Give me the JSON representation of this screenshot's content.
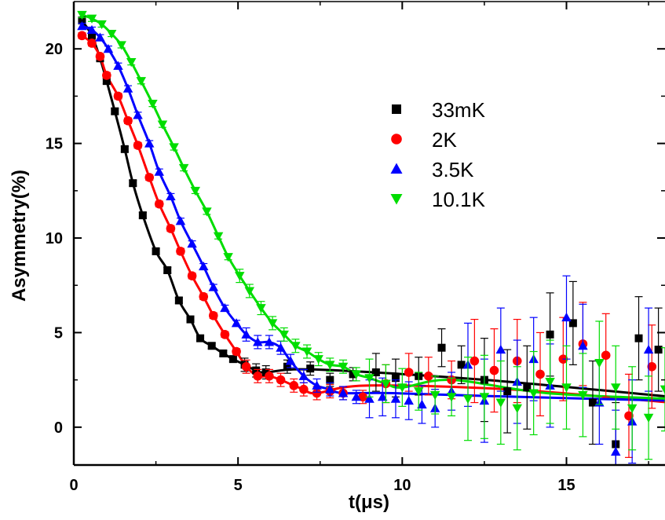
{
  "chart_data": {
    "type": "scatter",
    "xlabel": "t(μs)",
    "ylabel": "Asymmetry(%)",
    "xlim": [
      0,
      18
    ],
    "ylim": [
      -2,
      22.5
    ],
    "xticks": [
      0,
      5,
      10,
      15
    ],
    "yticks": [
      0,
      5,
      10,
      15,
      20
    ],
    "grid": false,
    "legend_position": "center-right",
    "series": [
      {
        "name": "33mK",
        "color": "#000000",
        "marker": "square",
        "x": [
          0.25,
          0.55,
          0.8,
          1.0,
          1.25,
          1.55,
          1.8,
          2.1,
          2.5,
          2.85,
          3.2,
          3.55,
          3.85,
          4.2,
          4.55,
          4.85,
          5.2,
          5.55,
          5.85,
          6.5,
          7.2,
          7.8,
          8.5,
          9.2,
          9.8,
          10.5,
          11.2,
          11.8,
          12.5,
          13.2,
          13.8,
          14.5,
          15.2,
          15.8,
          16.5,
          17.2,
          17.8
        ],
        "y": [
          21.5,
          20.7,
          19.5,
          18.3,
          16.7,
          14.7,
          12.9,
          11.2,
          9.3,
          8.3,
          6.7,
          5.7,
          4.7,
          4.3,
          3.9,
          3.6,
          3.3,
          3.0,
          2.9,
          3.2,
          3.1,
          2.5,
          2.8,
          2.9,
          2.6,
          2.7,
          4.2,
          3.3,
          2.5,
          1.9,
          2.1,
          4.9,
          5.5,
          1.3,
          -0.9,
          4.7,
          4.1
        ]
      },
      {
        "name": "2K",
        "color": "#ff0000",
        "marker": "circle",
        "x": [
          0.25,
          0.55,
          0.8,
          1.0,
          1.35,
          1.65,
          1.95,
          2.3,
          2.6,
          2.95,
          3.25,
          3.6,
          3.95,
          4.25,
          4.6,
          4.95,
          5.25,
          5.6,
          5.95,
          6.3,
          6.7,
          7.0,
          7.4,
          7.8,
          8.2,
          8.8,
          9.5,
          10.2,
          10.8,
          11.5,
          12.2,
          12.8,
          13.5,
          14.2,
          14.9,
          15.5,
          16.2,
          16.9,
          17.6
        ],
        "y": [
          20.7,
          20.3,
          19.6,
          18.6,
          17.5,
          16.2,
          14.9,
          13.2,
          11.8,
          10.5,
          9.3,
          8.0,
          6.9,
          5.9,
          4.9,
          4.0,
          3.2,
          2.7,
          2.7,
          2.5,
          2.2,
          2.0,
          1.8,
          1.9,
          1.8,
          1.6,
          2.3,
          2.9,
          2.7,
          2.5,
          3.5,
          3.0,
          3.5,
          2.8,
          3.6,
          4.4,
          3.8,
          0.6,
          3.2
        ]
      },
      {
        "name": "3.5K",
        "color": "#0000ff",
        "marker": "triangle-up",
        "x": [
          0.25,
          0.55,
          0.8,
          1.05,
          1.35,
          1.65,
          1.95,
          2.3,
          2.6,
          2.95,
          3.25,
          3.6,
          3.95,
          4.25,
          4.6,
          4.95,
          5.25,
          5.6,
          5.95,
          6.3,
          6.6,
          7.0,
          7.4,
          7.8,
          8.2,
          8.6,
          9.0,
          9.4,
          9.8,
          10.2,
          10.6,
          11.0,
          11.5,
          12.0,
          12.5,
          13.0,
          13.5,
          14.0,
          14.5,
          15.0,
          15.5,
          16.0,
          16.5,
          17.0,
          17.5
        ],
        "y": [
          21.2,
          21.0,
          20.6,
          20.0,
          19.1,
          17.9,
          16.5,
          15.0,
          13.5,
          12.2,
          10.9,
          9.7,
          8.5,
          7.4,
          6.3,
          5.5,
          4.9,
          4.5,
          4.5,
          4.2,
          3.5,
          2.7,
          2.2,
          2.0,
          1.8,
          1.6,
          1.5,
          1.6,
          1.5,
          1.4,
          1.2,
          1.0,
          1.9,
          3.3,
          1.4,
          4.1,
          2.4,
          3.6,
          2.2,
          5.8,
          4.3,
          1.3,
          -1.3,
          0.3,
          4.1
        ]
      },
      {
        "name": "10.1K",
        "color": "#00dd00",
        "marker": "triangle-down",
        "x": [
          0.25,
          0.55,
          0.85,
          1.15,
          1.45,
          1.75,
          2.05,
          2.4,
          2.7,
          3.05,
          3.35,
          3.7,
          4.05,
          4.4,
          4.7,
          5.05,
          5.35,
          5.7,
          6.05,
          6.4,
          6.75,
          7.1,
          7.45,
          7.8,
          8.2,
          8.6,
          9.0,
          9.5,
          10.0,
          10.5,
          11.0,
          11.5,
          12.0,
          12.5,
          13.0,
          13.5,
          14.0,
          14.5,
          15.0,
          15.5,
          16.0,
          16.5,
          17.0,
          17.5,
          18.0
        ],
        "y": [
          21.8,
          21.6,
          21.3,
          20.8,
          20.2,
          19.3,
          18.3,
          17.1,
          16.0,
          14.8,
          13.7,
          12.5,
          11.4,
          10.1,
          9.0,
          8.0,
          7.2,
          6.3,
          5.5,
          4.9,
          4.3,
          4.0,
          3.6,
          3.3,
          3.2,
          2.8,
          2.6,
          2.3,
          2.1,
          1.9,
          1.7,
          1.6,
          1.5,
          1.6,
          1.3,
          1.0,
          1.8,
          2.4,
          2.1,
          1.7,
          3.4,
          2.1,
          1.0,
          0.5,
          2.0
        ]
      }
    ]
  }
}
